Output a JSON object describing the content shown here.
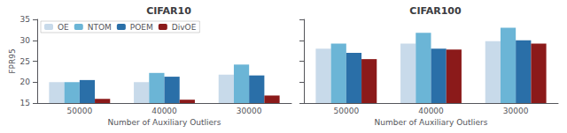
{
  "chart_data": [
    {
      "type": "bar",
      "title": "CIFAR10",
      "categories": [
        "50000",
        "40000",
        "30000"
      ],
      "series": [
        {
          "name": "OE",
          "color": "#c8daea",
          "values": [
            20.0,
            20.0,
            21.8
          ]
        },
        {
          "name": "NTOM",
          "color": "#6bb5d6",
          "values": [
            20.0,
            22.2,
            24.2
          ]
        },
        {
          "name": "POEM",
          "color": "#2a6fa8",
          "values": [
            20.5,
            21.3,
            21.6
          ]
        },
        {
          "name": "DivOE",
          "color": "#8b1a1a",
          "values": [
            16.0,
            15.8,
            16.8
          ]
        }
      ],
      "xlabel": "Number of Auxiliary Outliers",
      "ylabel": "FPR95",
      "ylim": [
        15,
        35
      ],
      "yticks": [
        15,
        20,
        25,
        30,
        35
      ],
      "grid": false,
      "legend": "upper left"
    },
    {
      "type": "bar",
      "title": "CIFAR100",
      "categories": [
        "50000",
        "40000",
        "30000"
      ],
      "series": [
        {
          "name": "OE",
          "color": "#c8daea",
          "values": [
            28.0,
            29.2,
            29.8
          ]
        },
        {
          "name": "NTOM",
          "color": "#6bb5d6",
          "values": [
            29.2,
            31.8,
            33.0
          ]
        },
        {
          "name": "POEM",
          "color": "#2a6fa8",
          "values": [
            27.0,
            28.0,
            30.0
          ]
        },
        {
          "name": "DivOE",
          "color": "#8b1a1a",
          "values": [
            25.5,
            27.8,
            29.2
          ]
        }
      ],
      "xlabel": "Number of Auxiliary Outliers",
      "ylim": [
        15,
        35
      ],
      "yticks": [
        15,
        20,
        25,
        30,
        35
      ],
      "grid": false,
      "tick_labels": "x"
    }
  ]
}
